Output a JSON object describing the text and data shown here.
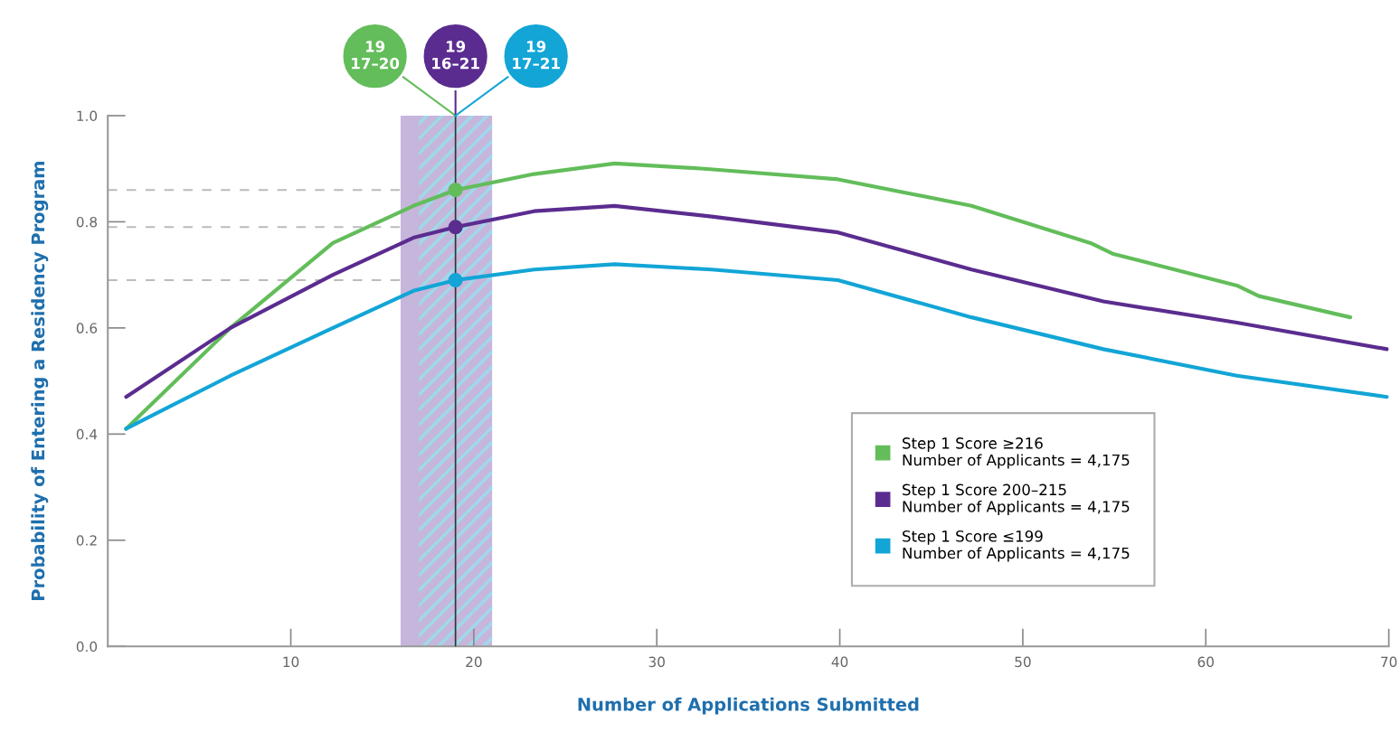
{
  "chart_data": {
    "type": "line",
    "xlabel": "Number of Applications Submitted",
    "ylabel": "Probability of Entering a Residency Program",
    "xlim": [
      0,
      70
    ],
    "xticks": [
      10,
      20,
      30,
      40,
      50,
      60,
      70
    ],
    "ylim": [
      0,
      1.0
    ],
    "yticks": [
      {
        "value": 0,
        "label": "0.0"
      },
      0.2,
      0.4,
      0.6,
      0.8,
      {
        "value": 1.0,
        "label": "1.0"
      }
    ],
    "grid": false,
    "legend": "bottom right",
    "marker": "none",
    "line_style": "solid",
    "series": [
      {
        "name": "Step 1 Score ≥216\nNumber of Applicants = 4,175",
        "color": "#62bd5a",
        "x": [
          1,
          6.7,
          12.3,
          16.7,
          19,
          23.3,
          27.7,
          32.6,
          39.9,
          47.2,
          53.7,
          54.9,
          61.7,
          62.9,
          67.9
        ],
        "values": [
          0.41,
          0.6,
          0.76,
          0.83,
          0.86,
          0.89,
          0.91,
          0.9,
          0.88,
          0.83,
          0.76,
          0.74,
          0.68,
          0.66,
          0.62
        ]
      },
      {
        "name": "Step 1 Score 200–215\nNumber of Applicants = 4,175",
        "color": "#5b2c8f",
        "x": [
          1,
          6.7,
          12.3,
          16.7,
          19,
          23.3,
          27.7,
          33,
          39.9,
          47.2,
          54.4,
          61.7,
          69.9
        ],
        "values": [
          0.47,
          0.6,
          0.7,
          0.77,
          0.79,
          0.82,
          0.83,
          0.81,
          0.78,
          0.71,
          0.65,
          0.61,
          0.56
        ]
      },
      {
        "name": "Step 1 Score ≤199\nNumber of Applicants = 4,175",
        "color": "#12a5d6",
        "x": [
          1,
          6.7,
          12.3,
          16.7,
          19,
          23.3,
          27.7,
          33,
          39.9,
          47.2,
          54.4,
          61.7,
          69.9
        ],
        "values": [
          0.41,
          0.51,
          0.6,
          0.67,
          0.69,
          0.71,
          0.72,
          0.71,
          0.69,
          0.62,
          0.56,
          0.51,
          0.47
        ]
      },
      {
        "type": "scatter",
        "marker": "circle",
        "x": [
          19,
          19,
          19
        ],
        "values": [
          0.86,
          0.79,
          0.69
        ],
        "colors": [
          "#62bd5a",
          "#5b2c8f",
          "#12a5d6"
        ]
      }
    ],
    "bands": [
      {
        "axis": "x",
        "from": 16,
        "to": 21,
        "color": "#c6b6dc"
      },
      {
        "axis": "x",
        "from": 17,
        "to": 20,
        "color": "#9fd39a"
      },
      {
        "axis": "x",
        "from": 17,
        "to": 21,
        "color": "#9fd8ee"
      }
    ],
    "ref_lines": [
      {
        "axis": "x",
        "value": 19,
        "color": "#333333",
        "line_style": "solid"
      },
      {
        "axis": "y",
        "value": 0.86,
        "color": "#bbbbbb",
        "line_style": "dashed"
      },
      {
        "axis": "y",
        "value": 0.79,
        "color": "#bbbbbb",
        "line_style": "dashed"
      },
      {
        "axis": "y",
        "value": 0.69,
        "color": "#bbbbbb",
        "line_style": "dashed"
      }
    ],
    "annotations": [
      "19\n17–20",
      "19\n16–21",
      "19\n17–21"
    ]
  }
}
